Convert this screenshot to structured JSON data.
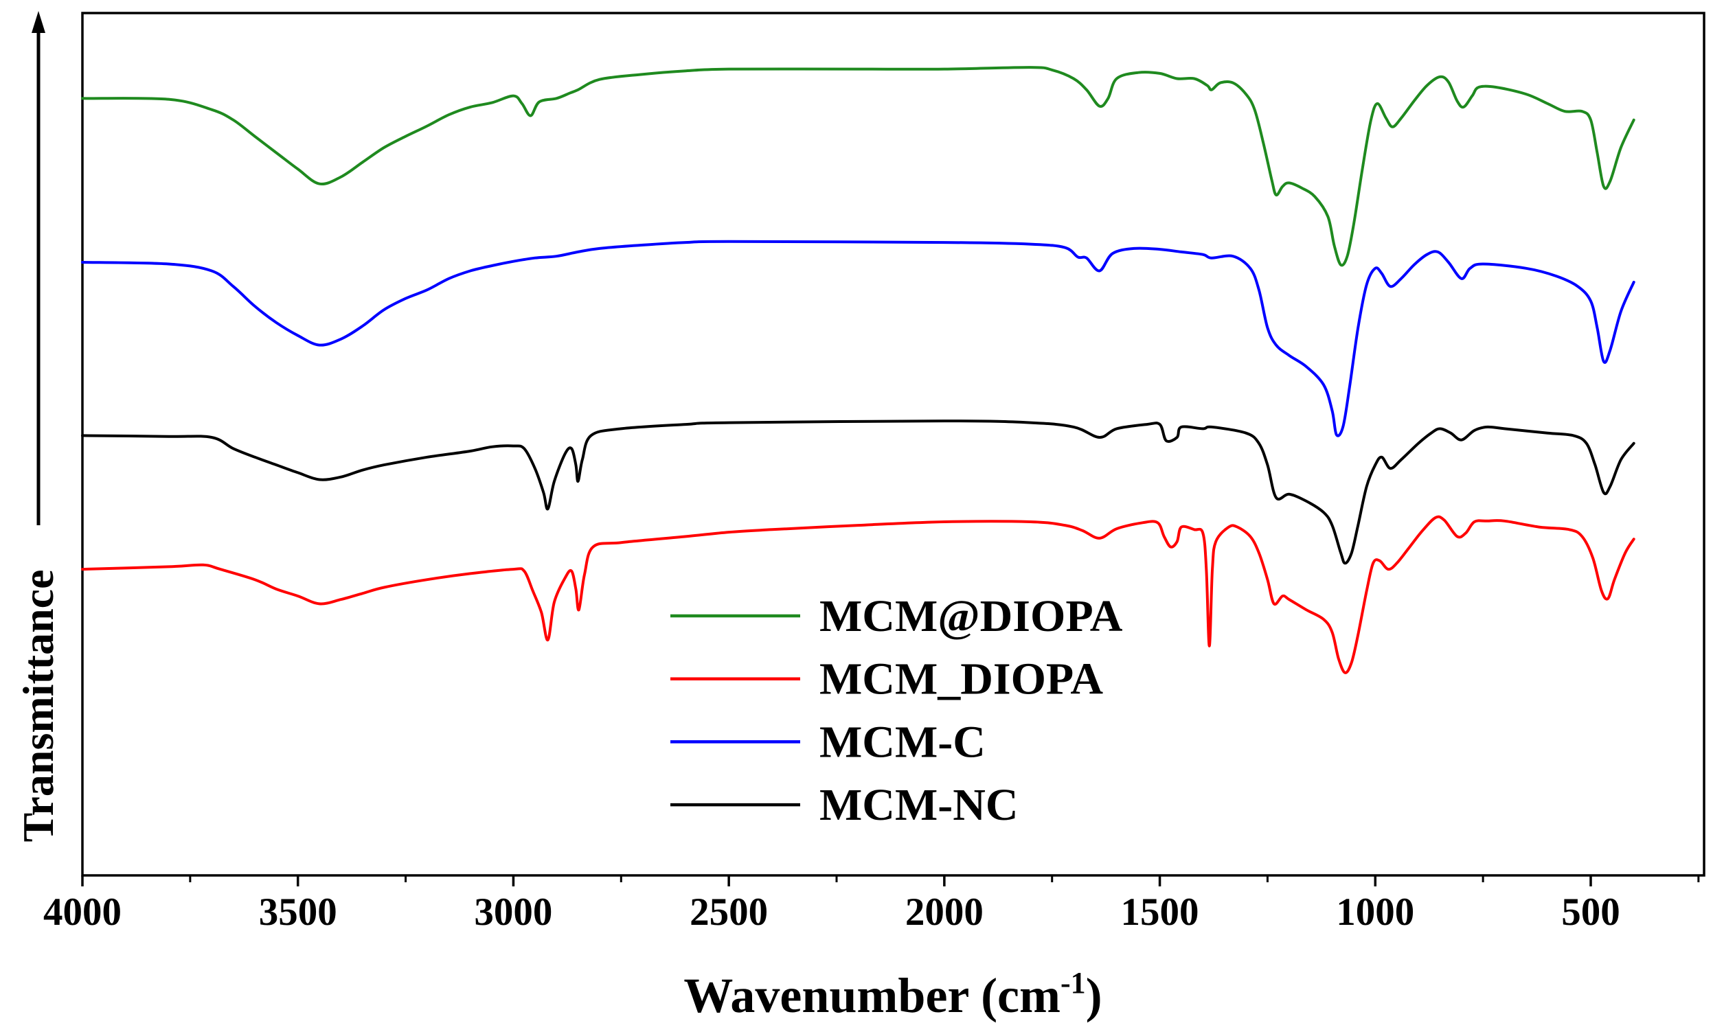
{
  "chart_data": {
    "type": "line",
    "title": "",
    "xlabel": {
      "text": "Wavenumber (cm",
      "superscript": "-1",
      "suffix": ")"
    },
    "ylabel": "Transmittance",
    "xlim": [
      4000,
      237
    ],
    "ylim": [
      0,
      100
    ],
    "x_ticks": [
      4000,
      3500,
      3000,
      2500,
      2000,
      1500,
      1000,
      500
    ],
    "x_tick_labels": [
      "4000",
      "3500",
      "3000",
      "2500",
      "2000",
      "1500",
      "1000",
      "500"
    ],
    "x_minor_ticks": [
      3750,
      3250,
      2750,
      2250,
      1750,
      1250,
      750,
      250
    ],
    "y_ticks": [],
    "grid": false,
    "legend_position": "bottom-center",
    "series": [
      {
        "name": "MCM@DIOPA",
        "color": "#1f8a1f",
        "x": [
          4000,
          3800,
          3700,
          3650,
          3600,
          3550,
          3500,
          3450,
          3400,
          3350,
          3300,
          3250,
          3200,
          3150,
          3100,
          3050,
          3000,
          2980,
          2960,
          2940,
          2900,
          2870,
          2850,
          2800,
          2700,
          2600,
          2500,
          2200,
          2000,
          1800,
          1750,
          1700,
          1670,
          1640,
          1620,
          1600,
          1550,
          1500,
          1460,
          1420,
          1390,
          1380,
          1360,
          1330,
          1300,
          1280,
          1260,
          1240,
          1230,
          1215,
          1200,
          1170,
          1140,
          1110,
          1095,
          1080,
          1065,
          1050,
          1030,
          1010,
          995,
          975,
          960,
          940,
          910,
          880,
          850,
          830,
          810,
          795,
          775,
          760,
          720,
          650,
          600,
          560,
          520,
          500,
          485,
          470,
          455,
          430,
          400
        ],
        "y": [
          90.1,
          90.0,
          88.8,
          87.6,
          85.7,
          83.8,
          81.9,
          80.2,
          81.0,
          82.7,
          84.4,
          85.7,
          86.9,
          88.2,
          89.1,
          89.6,
          90.4,
          89.5,
          88.1,
          89.7,
          90.1,
          90.7,
          91.1,
          92.3,
          92.9,
          93.3,
          93.5,
          93.5,
          93.5,
          93.7,
          93.4,
          92.4,
          91.1,
          89.2,
          90.1,
          92.4,
          93.1,
          93.0,
          92.4,
          92.4,
          91.6,
          91.1,
          91.9,
          91.9,
          90.6,
          88.8,
          85.0,
          80.6,
          78.9,
          79.9,
          80.3,
          79.7,
          78.7,
          76.4,
          73.0,
          70.8,
          71.8,
          75.5,
          81.9,
          87.6,
          89.5,
          87.8,
          86.8,
          87.8,
          89.8,
          91.6,
          92.6,
          92.0,
          89.8,
          89.1,
          90.4,
          91.4,
          91.4,
          90.6,
          89.5,
          88.6,
          88.6,
          87.6,
          83.8,
          79.9,
          80.5,
          84.4,
          87.6
        ]
      },
      {
        "name": "MCM_DIOPA",
        "color": "#ff0000",
        "x": [
          4000,
          3800,
          3720,
          3680,
          3600,
          3550,
          3500,
          3450,
          3400,
          3350,
          3300,
          3200,
          3100,
          3000,
          2975,
          2955,
          2935,
          2920,
          2905,
          2880,
          2865,
          2855,
          2848,
          2835,
          2815,
          2750,
          2600,
          2500,
          2400,
          2200,
          2000,
          1800,
          1720,
          1680,
          1640,
          1600,
          1540,
          1505,
          1490,
          1475,
          1460,
          1450,
          1420,
          1400,
          1392,
          1385,
          1378,
          1370,
          1340,
          1320,
          1290,
          1270,
          1250,
          1235,
          1215,
          1200,
          1160,
          1120,
          1100,
          1085,
          1070,
          1055,
          1040,
          1020,
          1005,
          990,
          970,
          950,
          920,
          890,
          860,
          840,
          810,
          790,
          770,
          740,
          700,
          620,
          550,
          520,
          495,
          475,
          460,
          445,
          420,
          400
        ],
        "y": [
          35.5,
          35.8,
          36.0,
          35.5,
          34.3,
          33.2,
          32.4,
          31.5,
          32.0,
          32.7,
          33.4,
          34.3,
          35.0,
          35.5,
          35.3,
          33.0,
          30.5,
          27.3,
          31.7,
          34.5,
          35.3,
          33.2,
          30.8,
          34.9,
          38.1,
          38.6,
          39.3,
          39.8,
          40.1,
          40.6,
          41.0,
          41.0,
          40.6,
          40.0,
          39.1,
          40.2,
          40.9,
          40.9,
          39.3,
          38.1,
          38.7,
          40.4,
          40.1,
          39.7,
          35.5,
          26.6,
          35.5,
          38.7,
          40.4,
          40.4,
          39.3,
          37.4,
          34.3,
          31.5,
          32.4,
          32.0,
          30.8,
          29.7,
          28.2,
          25.1,
          23.5,
          24.7,
          27.9,
          33.0,
          36.2,
          36.5,
          35.5,
          36.2,
          38.1,
          40.0,
          41.5,
          41.2,
          39.3,
          39.7,
          41.0,
          41.1,
          41.1,
          40.4,
          40.1,
          39.3,
          36.8,
          33.0,
          32.1,
          34.3,
          37.4,
          39.0
        ]
      },
      {
        "name": "MCM-C",
        "color": "#0000ff",
        "x": [
          4000,
          3800,
          3700,
          3650,
          3600,
          3550,
          3500,
          3450,
          3400,
          3350,
          3300,
          3250,
          3200,
          3150,
          3100,
          3050,
          3000,
          2950,
          2900,
          2850,
          2800,
          2700,
          2600,
          2500,
          2000,
          1800,
          1720,
          1690,
          1670,
          1640,
          1610,
          1560,
          1500,
          1450,
          1400,
          1380,
          1330,
          1290,
          1270,
          1250,
          1230,
          1200,
          1160,
          1120,
          1100,
          1090,
          1075,
          1060,
          1040,
          1020,
          1000,
          985,
          965,
          940,
          910,
          880,
          855,
          830,
          800,
          780,
          750,
          650,
          580,
          530,
          500,
          485,
          470,
          455,
          430,
          400
        ],
        "y": [
          71.1,
          70.9,
          70.1,
          68.3,
          66.0,
          64.1,
          62.6,
          61.5,
          62.2,
          63.7,
          65.6,
          66.9,
          67.9,
          69.2,
          70.1,
          70.7,
          71.2,
          71.6,
          71.8,
          72.3,
          72.7,
          73.1,
          73.4,
          73.5,
          73.4,
          73.2,
          72.8,
          71.7,
          71.6,
          70.1,
          72.1,
          72.7,
          72.6,
          72.3,
          72.0,
          71.6,
          71.8,
          70.4,
          67.9,
          63.5,
          61.5,
          60.3,
          59.0,
          56.9,
          53.9,
          51.1,
          52.0,
          56.5,
          63.5,
          68.5,
          70.4,
          69.8,
          68.3,
          69.2,
          70.8,
          72.0,
          72.3,
          71.1,
          69.2,
          70.4,
          70.9,
          70.4,
          69.5,
          68.3,
          66.6,
          63.5,
          59.6,
          60.9,
          65.4,
          68.8
        ]
      },
      {
        "name": "MCM-NC",
        "color": "#000000",
        "x": [
          4000,
          3800,
          3700,
          3650,
          3600,
          3550,
          3500,
          3450,
          3400,
          3350,
          3300,
          3200,
          3100,
          3050,
          3000,
          2975,
          2950,
          2930,
          2920,
          2905,
          2880,
          2865,
          2855,
          2850,
          2840,
          2820,
          2750,
          2600,
          2500,
          2000,
          1800,
          1700,
          1640,
          1600,
          1530,
          1500,
          1485,
          1460,
          1450,
          1400,
          1380,
          1300,
          1270,
          1250,
          1230,
          1200,
          1160,
          1120,
          1100,
          1080,
          1070,
          1055,
          1040,
          1020,
          1000,
          985,
          965,
          940,
          900,
          870,
          850,
          825,
          800,
          770,
          740,
          700,
          600,
          540,
          510,
          490,
          470,
          455,
          430,
          400
        ],
        "y": [
          51.0,
          50.9,
          50.8,
          49.5,
          48.5,
          47.6,
          46.7,
          45.9,
          46.2,
          47.0,
          47.6,
          48.5,
          49.2,
          49.7,
          49.8,
          49.5,
          47.2,
          44.4,
          42.5,
          45.7,
          48.9,
          49.5,
          47.6,
          45.7,
          48.2,
          51.0,
          51.8,
          52.3,
          52.5,
          52.7,
          52.5,
          52.0,
          50.8,
          51.8,
          52.3,
          52.3,
          50.4,
          50.8,
          52.0,
          51.8,
          52.0,
          51.3,
          50.1,
          47.6,
          43.8,
          44.2,
          43.4,
          42.1,
          40.6,
          37.4,
          36.2,
          37.4,
          40.6,
          45.1,
          47.6,
          48.5,
          47.2,
          48.2,
          50.1,
          51.3,
          51.8,
          51.3,
          50.5,
          51.6,
          52.0,
          51.8,
          51.3,
          51.0,
          50.1,
          47.6,
          44.4,
          45.1,
          48.2,
          50.1
        ]
      }
    ]
  }
}
